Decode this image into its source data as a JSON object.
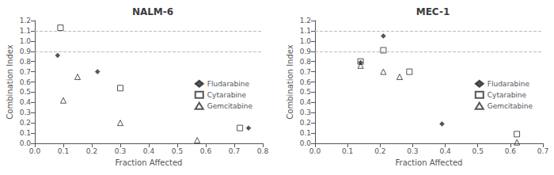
{
  "chart_data": [
    {
      "type": "scatter",
      "title": "NALM-6",
      "xlabel": "Fraction Affected",
      "ylabel": "Combination Index",
      "series": [
        {
          "name": "Fludarabine",
          "color": "#2b2b2b",
          "marker": "diamond",
          "x": [
            0.08,
            0.22,
            0.75
          ],
          "values": [
            0.86,
            0.7,
            0.15
          ]
        },
        {
          "name": "Cytarabine",
          "color": "#2b2b2b",
          "marker": "open_square",
          "x": [
            0.09,
            0.3,
            0.72
          ],
          "values": [
            1.13,
            0.54,
            0.15
          ]
        },
        {
          "name": "Gemcitabine",
          "color": "#2b2b2b",
          "marker": "open_triangle",
          "x": [
            0.1,
            0.15,
            0.3,
            0.57
          ],
          "values": [
            0.42,
            0.65,
            0.2,
            0.03
          ]
        }
      ],
      "hlines": [
        1.1,
        0.9
      ],
      "xlim": [
        0,
        0.8
      ],
      "xticks": [
        {
          "value": 0,
          "label": "0.0"
        },
        0.1,
        0.2,
        0.3,
        0.4,
        0.5,
        0.6,
        0.7,
        0.8
      ],
      "ylim": [
        0,
        1.2
      ],
      "yticks": [
        {
          "value": 0,
          "label": "0.0"
        },
        0.1,
        0.2,
        0.3,
        0.4,
        0.5,
        0.6,
        0.7,
        0.8,
        0.9,
        {
          "value": 1.0,
          "label": "1.0"
        },
        1.1,
        1.2
      ],
      "grid": false,
      "legend": "right"
    },
    {
      "type": "scatter",
      "title": "MEC-1",
      "xlabel": "Fraction Affected",
      "ylabel": "Combination Index",
      "series": [
        {
          "name": "Fludarabine",
          "color": "#2b2b2b",
          "marker": "diamond",
          "x": [
            0.14,
            0.21,
            0.39
          ],
          "values": [
            0.79,
            1.05,
            0.19
          ]
        },
        {
          "name": "Cytarabine",
          "color": "#2b2b2b",
          "marker": "open_square",
          "x": [
            0.14,
            0.21,
            0.29,
            0.62
          ],
          "values": [
            0.8,
            0.91,
            0.7,
            0.09
          ]
        },
        {
          "name": "Gemcitabine",
          "color": "#2b2b2b",
          "marker": "open_triangle",
          "x": [
            0.14,
            0.21,
            0.26,
            0.62
          ],
          "values": [
            0.76,
            0.7,
            0.65,
            0.01
          ]
        }
      ],
      "hlines": [
        1.1,
        0.9
      ],
      "xlim": [
        0,
        0.7
      ],
      "xticks": [
        {
          "value": 0,
          "label": "0.0"
        },
        0.1,
        0.2,
        0.3,
        0.4,
        0.5,
        0.6,
        0.7
      ],
      "ylim": [
        0,
        1.2
      ],
      "yticks": [
        {
          "value": 0,
          "label": "0.0"
        },
        0.1,
        0.2,
        0.3,
        0.4,
        0.5,
        0.6,
        0.7,
        0.8,
        0.9,
        {
          "value": 1.0,
          "label": "1.0"
        },
        1.1,
        1.2
      ],
      "grid": false,
      "legend": "right"
    }
  ]
}
